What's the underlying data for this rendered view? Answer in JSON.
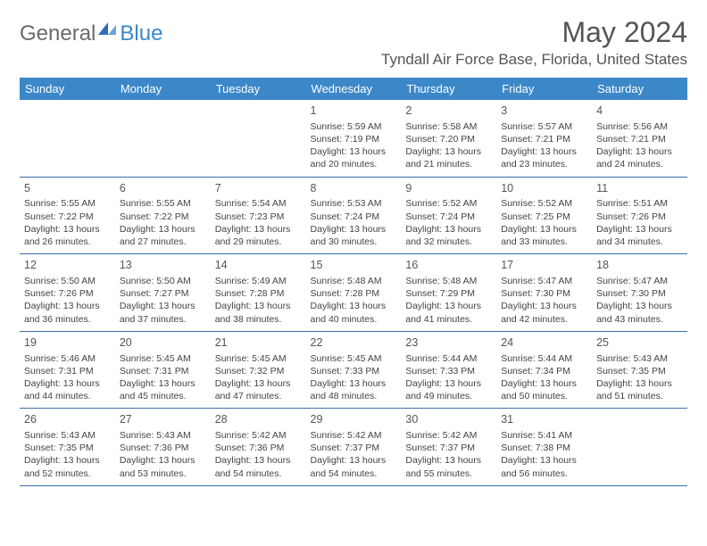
{
  "brand": {
    "part1": "General",
    "part2": "Blue"
  },
  "title": "May 2024",
  "location": "Tyndall Air Force Base, Florida, United States",
  "colors": {
    "header_bg": "#3b87c8",
    "header_text": "#ffffff",
    "rule": "#3b6fa5",
    "body_text": "#444444",
    "title_text": "#555555"
  },
  "fonts": {
    "title_size": 32,
    "location_size": 17,
    "th_size": 13,
    "cell_size": 10.5
  },
  "weekdays": [
    "Sunday",
    "Monday",
    "Tuesday",
    "Wednesday",
    "Thursday",
    "Friday",
    "Saturday"
  ],
  "weeks": [
    [
      null,
      null,
      null,
      {
        "d": "1",
        "sr": "5:59 AM",
        "ss": "7:19 PM",
        "dl": "13 hours and 20 minutes."
      },
      {
        "d": "2",
        "sr": "5:58 AM",
        "ss": "7:20 PM",
        "dl": "13 hours and 21 minutes."
      },
      {
        "d": "3",
        "sr": "5:57 AM",
        "ss": "7:21 PM",
        "dl": "13 hours and 23 minutes."
      },
      {
        "d": "4",
        "sr": "5:56 AM",
        "ss": "7:21 PM",
        "dl": "13 hours and 24 minutes."
      }
    ],
    [
      {
        "d": "5",
        "sr": "5:55 AM",
        "ss": "7:22 PM",
        "dl": "13 hours and 26 minutes."
      },
      {
        "d": "6",
        "sr": "5:55 AM",
        "ss": "7:22 PM",
        "dl": "13 hours and 27 minutes."
      },
      {
        "d": "7",
        "sr": "5:54 AM",
        "ss": "7:23 PM",
        "dl": "13 hours and 29 minutes."
      },
      {
        "d": "8",
        "sr": "5:53 AM",
        "ss": "7:24 PM",
        "dl": "13 hours and 30 minutes."
      },
      {
        "d": "9",
        "sr": "5:52 AM",
        "ss": "7:24 PM",
        "dl": "13 hours and 32 minutes."
      },
      {
        "d": "10",
        "sr": "5:52 AM",
        "ss": "7:25 PM",
        "dl": "13 hours and 33 minutes."
      },
      {
        "d": "11",
        "sr": "5:51 AM",
        "ss": "7:26 PM",
        "dl": "13 hours and 34 minutes."
      }
    ],
    [
      {
        "d": "12",
        "sr": "5:50 AM",
        "ss": "7:26 PM",
        "dl": "13 hours and 36 minutes."
      },
      {
        "d": "13",
        "sr": "5:50 AM",
        "ss": "7:27 PM",
        "dl": "13 hours and 37 minutes."
      },
      {
        "d": "14",
        "sr": "5:49 AM",
        "ss": "7:28 PM",
        "dl": "13 hours and 38 minutes."
      },
      {
        "d": "15",
        "sr": "5:48 AM",
        "ss": "7:28 PM",
        "dl": "13 hours and 40 minutes."
      },
      {
        "d": "16",
        "sr": "5:48 AM",
        "ss": "7:29 PM",
        "dl": "13 hours and 41 minutes."
      },
      {
        "d": "17",
        "sr": "5:47 AM",
        "ss": "7:30 PM",
        "dl": "13 hours and 42 minutes."
      },
      {
        "d": "18",
        "sr": "5:47 AM",
        "ss": "7:30 PM",
        "dl": "13 hours and 43 minutes."
      }
    ],
    [
      {
        "d": "19",
        "sr": "5:46 AM",
        "ss": "7:31 PM",
        "dl": "13 hours and 44 minutes."
      },
      {
        "d": "20",
        "sr": "5:45 AM",
        "ss": "7:31 PM",
        "dl": "13 hours and 45 minutes."
      },
      {
        "d": "21",
        "sr": "5:45 AM",
        "ss": "7:32 PM",
        "dl": "13 hours and 47 minutes."
      },
      {
        "d": "22",
        "sr": "5:45 AM",
        "ss": "7:33 PM",
        "dl": "13 hours and 48 minutes."
      },
      {
        "d": "23",
        "sr": "5:44 AM",
        "ss": "7:33 PM",
        "dl": "13 hours and 49 minutes."
      },
      {
        "d": "24",
        "sr": "5:44 AM",
        "ss": "7:34 PM",
        "dl": "13 hours and 50 minutes."
      },
      {
        "d": "25",
        "sr": "5:43 AM",
        "ss": "7:35 PM",
        "dl": "13 hours and 51 minutes."
      }
    ],
    [
      {
        "d": "26",
        "sr": "5:43 AM",
        "ss": "7:35 PM",
        "dl": "13 hours and 52 minutes."
      },
      {
        "d": "27",
        "sr": "5:43 AM",
        "ss": "7:36 PM",
        "dl": "13 hours and 53 minutes."
      },
      {
        "d": "28",
        "sr": "5:42 AM",
        "ss": "7:36 PM",
        "dl": "13 hours and 54 minutes."
      },
      {
        "d": "29",
        "sr": "5:42 AM",
        "ss": "7:37 PM",
        "dl": "13 hours and 54 minutes."
      },
      {
        "d": "30",
        "sr": "5:42 AM",
        "ss": "7:37 PM",
        "dl": "13 hours and 55 minutes."
      },
      {
        "d": "31",
        "sr": "5:41 AM",
        "ss": "7:38 PM",
        "dl": "13 hours and 56 minutes."
      },
      null
    ]
  ],
  "labels": {
    "sunrise": "Sunrise: ",
    "sunset": "Sunset: ",
    "daylight": "Daylight: "
  }
}
